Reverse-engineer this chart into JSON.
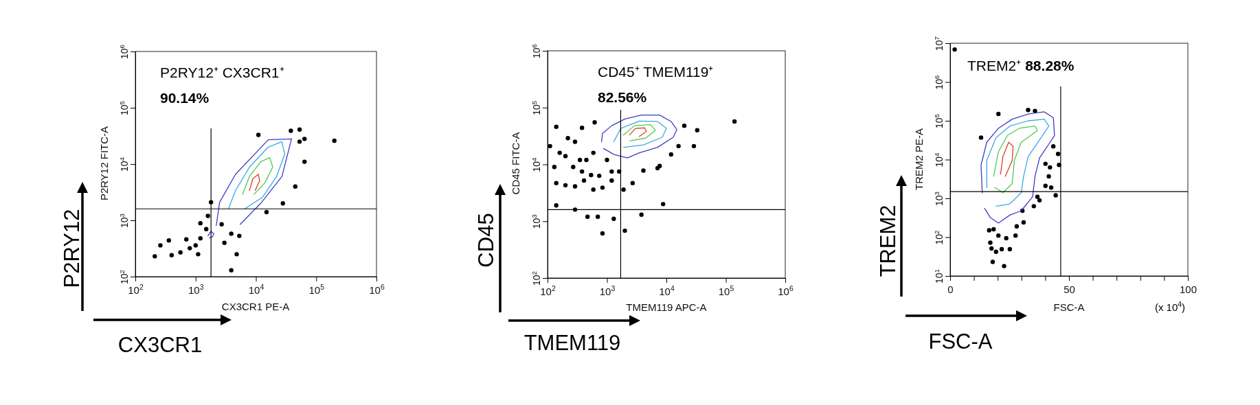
{
  "chart_data": [
    {
      "type": "scatter",
      "xlabel": "CX3CR1 PE-A",
      "ylabel": "P2RY12 FITC-A",
      "log": "xy",
      "xlim": [
        100,
        1000000
      ],
      "ylim": [
        100,
        1000000
      ],
      "xticks": [
        {
          "value": 100,
          "label": "10$^{2}$"
        },
        {
          "value": 1000,
          "label": "10$^{3}$"
        },
        {
          "value": 10000,
          "label": "10$^{4}$"
        },
        {
          "value": 100000,
          "label": "10$^{5}$"
        },
        {
          "value": 1000000,
          "label": "10$^{6}$"
        }
      ],
      "yticks": [
        {
          "value": 100,
          "label": "10$^{2}$"
        },
        {
          "value": 1000,
          "label": "10$^{3}$"
        },
        {
          "value": 10000,
          "label": "10$^{4}$"
        },
        {
          "value": 100000,
          "label": "10$^{5}$"
        },
        {
          "value": 1000000,
          "label": "10$^{6}$"
        }
      ],
      "annotations": [
        "P2RY12⁺ CX3CR1⁺",
        "90.14%",
        "P2RY12",
        "CX3CR1"
      ],
      "ref_lines": [
        {
          "axis": "x",
          "value": 1800
        },
        {
          "axis": "y",
          "value": 1600
        }
      ],
      "series": [
        {
          "type": "scatter",
          "marker": "circle",
          "color": "#000000",
          "x": [
            210,
            260,
            360,
            400,
            560,
            700,
            800,
            1000,
            1100,
            1200,
            1200,
            1500,
            1600,
            1800,
            2700,
            3000,
            3900,
            4800,
            5300,
            11000,
            38000,
            53000,
            64000,
            200000,
            45000,
            28000,
            64000,
            15000,
            53000,
            3900
          ],
          "values": [
            230,
            360,
            440,
            240,
            270,
            460,
            320,
            360,
            250,
            480,
            890,
            700,
            1200,
            2100,
            850,
            400,
            580,
            250,
            530,
            33000,
            39000,
            41000,
            28000,
            26000,
            4000,
            2000,
            11000,
            1400,
            25000,
            130
          ]
        },
        {
          "type": "line",
          "color": "#3c3cc8",
          "x": [
            2200,
            2500,
            4600,
            16000,
            39000,
            27000,
            12000,
            5500
          ],
          "values": [
            810,
            2100,
            6600,
            27000,
            28000,
            6000,
            2000,
            850
          ]
        },
        {
          "type": "line",
          "color": "#3c3cc8",
          "x": [
            1600,
            1800,
            2000,
            1900,
            1700
          ],
          "values": [
            530,
            640,
            580,
            510,
            490
          ]
        },
        {
          "type": "line",
          "color": "#3aa8e8",
          "x": [
            3500,
            4600,
            7800,
            16000,
            27000,
            30000,
            22000,
            13000,
            6500
          ],
          "values": [
            1600,
            3400,
            8800,
            20000,
            25000,
            15000,
            6000,
            2600,
            1600
          ]
        },
        {
          "type": "line",
          "color": "#4ccc4c",
          "x": [
            6000,
            7800,
            12000,
            17000,
            19000,
            14000,
            9300
          ],
          "values": [
            2900,
            6000,
            11000,
            13000,
            8800,
            4600,
            2900
          ]
        },
        {
          "type": "line",
          "color": "#e03c28",
          "x": [
            7800,
            8900,
            11000,
            11500,
            9700
          ],
          "values": [
            3400,
            5500,
            6600,
            5000,
            3400
          ]
        }
      ]
    },
    {
      "type": "scatter",
      "xlabel": "TMEM119 APC-A",
      "ylabel": "CD45 FITC-A",
      "log": "xy",
      "xlim": [
        100,
        1000000
      ],
      "ylim": [
        100,
        1000000
      ],
      "xticks": [
        {
          "value": 100,
          "label": "10$^{2}$"
        },
        {
          "value": 1000,
          "label": "10$^{3}$"
        },
        {
          "value": 10000,
          "label": "10$^{4}$"
        },
        {
          "value": 100000,
          "label": "10$^{5}$"
        },
        {
          "value": 1000000,
          "label": "10$^{6}$"
        }
      ],
      "yticks": [
        {
          "value": 100,
          "label": "10$^{2}$"
        },
        {
          "value": 1000,
          "label": "10$^{3}$"
        },
        {
          "value": 10000,
          "label": "10$^{4}$"
        },
        {
          "value": 100000,
          "label": "10$^{5}$"
        },
        {
          "value": 1000000,
          "label": "10$^{6}$"
        }
      ],
      "annotations": [
        "CD45⁺ TMEM119⁺",
        "82.56%",
        "CD45",
        "TMEM119"
      ],
      "ref_lines": [
        {
          "axis": "x",
          "value": 1700
        },
        {
          "axis": "y",
          "value": 1600
        }
      ],
      "series": [
        {
          "type": "scatter",
          "marker": "circle",
          "color": "#000000",
          "x": [
            140,
            620,
            380,
            220,
            290,
            110,
            160,
            200,
            350,
            450,
            590,
            130,
            270,
            380,
            540,
            740,
            1000,
            1200,
            1600,
            140,
            200,
            290,
            410,
            590,
            840,
            1200,
            1900,
            2700,
            4100,
            7100,
            7700,
            140,
            290,
            470,
            700,
            1300,
            3800,
            2000,
            840,
            8800,
            140000,
            20000,
            29000,
            33000,
            12000,
            16000
          ],
          "values": [
            46000,
            55000,
            44000,
            29000,
            25000,
            21000,
            16000,
            14000,
            12000,
            12000,
            16000,
            9000,
            9000,
            7500,
            6500,
            6300,
            12000,
            7500,
            7500,
            4700,
            4300,
            4100,
            5200,
            3600,
            3900,
            5200,
            3600,
            4700,
            7800,
            8600,
            9400,
            1900,
            1600,
            1200,
            1200,
            1100,
            1300,
            680,
            610,
            2000,
            57000,
            48000,
            21000,
            40000,
            15000,
            21000
          ]
        },
        {
          "type": "line",
          "color": "#3c3cc8",
          "x": [
            810,
            840,
            1200,
            2000,
            3800,
            7700,
            12000,
            15000,
            13000,
            7100,
            3500,
            2200,
            1300,
            880
          ],
          "values": [
            25000,
            35000,
            48000,
            63000,
            74000,
            74000,
            57000,
            41000,
            30000,
            20000,
            16000,
            13000,
            15000,
            19000
          ]
        },
        {
          "type": "line",
          "color": "#3aa8e8",
          "x": [
            1300,
            1700,
            3500,
            7100,
            10000,
            8500,
            4100,
            1900
          ],
          "values": [
            25000,
            43000,
            58000,
            57000,
            43000,
            30000,
            22000,
            20000
          ]
        },
        {
          "type": "line",
          "color": "#4ccc4c",
          "x": [
            1900,
            2900,
            5400,
            6500,
            4500,
            2400
          ],
          "values": [
            33000,
            48000,
            50000,
            40000,
            29000,
            26000
          ]
        },
        {
          "type": "line",
          "color": "#e03c28",
          "x": [
            2400,
            3000,
            4300,
            4600,
            3500
          ],
          "values": [
            33000,
            43000,
            44000,
            38000,
            31000
          ]
        }
      ]
    },
    {
      "type": "scatter",
      "xlabel": "FSC-A",
      "ylabel": "TREM2 PE-A",
      "log": "y",
      "xlim": [
        0,
        100
      ],
      "ylim": [
        10,
        10000000
      ],
      "xticks": [
        0,
        {
          "value": 10,
          "label": null
        },
        {
          "value": 20,
          "label": null
        },
        {
          "value": 30,
          "label": null
        },
        {
          "value": 40,
          "label": null
        },
        50,
        {
          "value": 60,
          "label": null
        },
        {
          "value": 70,
          "label": null
        },
        {
          "value": 80,
          "label": null
        },
        {
          "value": 90,
          "label": null
        },
        100
      ],
      "yticks": [
        {
          "value": 10,
          "label": "10$^{1}$"
        },
        {
          "value": 100,
          "label": "10$^{2}$"
        },
        {
          "value": 1000,
          "label": "10$^{3}$"
        },
        {
          "value": 10000,
          "label": "10$^{4}$"
        },
        {
          "value": 100000,
          "label": "10$^{5}$"
        },
        {
          "value": 1000000,
          "label": "10$^{6}$"
        },
        {
          "value": 10000000,
          "label": "10$^{7}$"
        }
      ],
      "annotations": [
        "TREM2⁺",
        "88.28%",
        "(x 10$^{4}$)",
        "TREM2",
        "FSC-A"
      ],
      "ref_lines": [
        {
          "axis": "x",
          "value": 46.5
        },
        {
          "axis": "y",
          "value": 1500
        }
      ],
      "series": [
        {
          "type": "scatter",
          "marker": "circle",
          "color": "#000000",
          "x": [
            1.9,
            13.0,
            20.3,
            16.4,
            16.9,
            18.3,
            20.3,
            17.4,
            19.3,
            21.7,
            25.1,
            23.6,
            27.5,
            28.0,
            30.9,
            30.4,
            35.2,
            36.7,
            37.6,
            40.1,
            41.5,
            42.5,
            44.4,
            45.4,
            45.8,
            43.4,
            42.0,
            40.1,
            32.8,
            35.7,
            22.7,
            17.9
          ],
          "values": [
            6900000,
            37000,
            150000,
            150,
            72,
            160,
            110,
            51,
            42,
            49,
            49,
            94,
            110,
            190,
            240,
            480,
            630,
            1100,
            890,
            2100,
            3700,
            1900,
            1200,
            14000,
            7300,
            22000,
            6300,
            7800,
            190000,
            180000,
            18,
            23
          ]
        },
        {
          "type": "line",
          "color": "#3c3cc8",
          "x": [
            13.5,
            13.0,
            15.4,
            20.3,
            26.1,
            32.8,
            39.6,
            43.4,
            43.9,
            41.5,
            37.6,
            35.7,
            34.7,
            29.9,
            25.1,
            20.3,
            16.9,
            14.5
          ],
          "values": [
            1400,
            7300,
            28000,
            64000,
            110000,
            150000,
            170000,
            120000,
            42000,
            25000,
            11000,
            3700,
            1100,
            480,
            370,
            230,
            320,
            550
          ]
        },
        {
          "type": "line",
          "color": "#3aa8e8",
          "x": [
            15.4,
            15.4,
            19.3,
            25.1,
            32.8,
            39.6,
            41.5,
            37.6,
            32.8,
            30.9,
            29.9,
            25.1,
            19.3
          ],
          "values": [
            1900,
            9500,
            37000,
            73000,
            100000,
            110000,
            73000,
            32000,
            12000,
            3700,
            1400,
            720,
            630
          ]
        },
        {
          "type": "line",
          "color": "#4ccc4c",
          "x": [
            18.3,
            20.3,
            24.1,
            29.0,
            35.7,
            36.7,
            29.9,
            27.0,
            26.1,
            22.2,
            18.8
          ],
          "values": [
            3700,
            16000,
            42000,
            64000,
            73000,
            56000,
            28000,
            9500,
            2400,
            1400,
            1900
          ]
        },
        {
          "type": "line",
          "color": "#e03c28",
          "x": [
            21.2,
            22.2,
            24.6,
            26.5,
            26.1,
            23.2
          ],
          "values": [
            4200,
            12000,
            28000,
            22000,
            9500,
            3700
          ]
        }
      ]
    }
  ]
}
